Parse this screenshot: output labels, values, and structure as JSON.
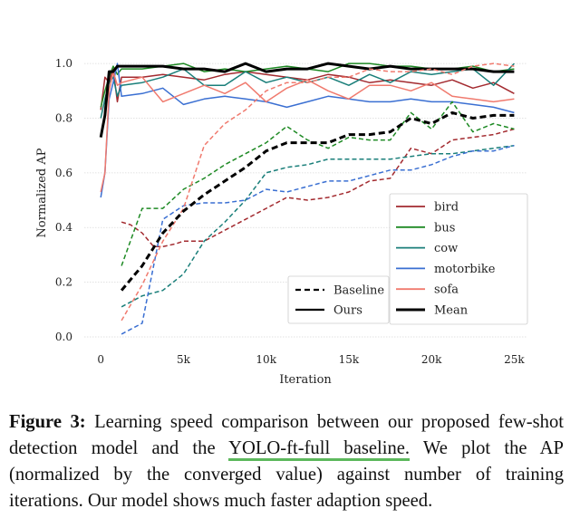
{
  "chart_data": {
    "type": "line",
    "title": "",
    "xlabel": "Iteration",
    "ylabel": "Normalized AP",
    "xlim": [
      -1000,
      25800
    ],
    "ylim": [
      -0.02,
      1.05
    ],
    "x_ticks": [
      0,
      5000,
      10000,
      15000,
      20000,
      25000
    ],
    "x_tick_labels": [
      "0",
      "5k",
      "10k",
      "15k",
      "20k",
      "25k"
    ],
    "y_ticks": [
      0.0,
      0.2,
      0.4,
      0.6,
      0.8,
      1.0
    ],
    "y_tick_labels": [
      "0.0",
      "0.2",
      "0.4",
      "0.6",
      "0.8",
      "1.0"
    ],
    "grid": true,
    "x": [
      0,
      250,
      500,
      750,
      1000,
      1250,
      2500,
      3750,
      5000,
      6250,
      7500,
      8750,
      10000,
      11250,
      12500,
      13750,
      15000,
      16250,
      17500,
      18750,
      20000,
      21250,
      22500,
      23750,
      25000
    ],
    "series": [
      {
        "name": "bird",
        "method": "Ours",
        "color": "#a32a2f",
        "values": [
          0.83,
          0.95,
          0.93,
          0.98,
          0.86,
          0.95,
          0.95,
          0.96,
          0.95,
          0.94,
          0.96,
          0.97,
          0.96,
          0.95,
          0.94,
          0.96,
          0.95,
          0.93,
          0.94,
          0.93,
          0.92,
          0.94,
          0.91,
          0.93,
          0.89
        ]
      },
      {
        "name": "bus",
        "method": "Ours",
        "color": "#1e8a24",
        "values": [
          0.84,
          0.9,
          0.95,
          0.99,
          0.96,
          0.98,
          0.98,
          0.99,
          1.0,
          0.97,
          0.98,
          0.97,
          0.98,
          0.99,
          0.98,
          0.97,
          1.0,
          1.0,
          0.99,
          0.99,
          0.98,
          0.98,
          0.99,
          0.97,
          0.98
        ]
      },
      {
        "name": "cow",
        "method": "Ours",
        "color": "#1a7f7a",
        "values": [
          0.8,
          0.87,
          0.93,
          0.95,
          0.88,
          0.92,
          0.93,
          0.95,
          0.98,
          0.92,
          0.92,
          0.97,
          0.93,
          0.95,
          0.93,
          0.95,
          0.92,
          0.96,
          0.93,
          0.97,
          0.96,
          0.97,
          0.98,
          0.92,
          1.0
        ]
      },
      {
        "name": "motorbike",
        "method": "Ours",
        "color": "#3a6fd2",
        "values": [
          0.51,
          0.6,
          0.87,
          0.93,
          1.0,
          0.88,
          0.89,
          0.91,
          0.85,
          0.87,
          0.88,
          0.87,
          0.86,
          0.84,
          0.86,
          0.88,
          0.87,
          0.86,
          0.86,
          0.87,
          0.86,
          0.86,
          0.85,
          0.84,
          0.82
        ]
      },
      {
        "name": "sofa",
        "method": "Ours",
        "color": "#f07a6e",
        "values": [
          0.53,
          0.6,
          0.9,
          0.97,
          0.92,
          0.93,
          0.95,
          0.86,
          0.89,
          0.92,
          0.89,
          0.93,
          0.86,
          0.91,
          0.94,
          0.9,
          0.87,
          0.92,
          0.92,
          0.9,
          0.93,
          0.88,
          0.87,
          0.86,
          0.87
        ]
      },
      {
        "name": "Mean",
        "method": "Ours",
        "color": "#000000",
        "bold": true,
        "values": [
          0.73,
          0.81,
          0.97,
          0.97,
          0.99,
          0.99,
          0.99,
          0.99,
          0.98,
          0.98,
          0.97,
          1.0,
          0.97,
          0.98,
          0.98,
          1.0,
          0.99,
          0.98,
          0.99,
          0.98,
          0.98,
          0.98,
          0.98,
          0.97,
          0.97
        ]
      },
      {
        "name": "bird",
        "method": "Baseline",
        "color": "#a32a2f",
        "x": [
          1250,
          1800,
          2500,
          3200,
          3750,
          4500,
          5000,
          6250,
          7500,
          8750,
          10000,
          11250,
          12500,
          13750,
          15000,
          16250,
          17500,
          18750,
          20000,
          21250,
          22500,
          23750,
          25000
        ],
        "values": [
          0.42,
          0.41,
          0.38,
          0.33,
          0.33,
          0.34,
          0.35,
          0.35,
          0.39,
          0.43,
          0.47,
          0.51,
          0.5,
          0.51,
          0.53,
          0.57,
          0.58,
          0.69,
          0.67,
          0.72,
          0.73,
          0.74,
          0.76
        ]
      },
      {
        "name": "bus",
        "method": "Baseline",
        "color": "#1e8a24",
        "x": [
          1250,
          2500,
          3750,
          5000,
          6250,
          7500,
          8750,
          10000,
          11250,
          12500,
          13750,
          15000,
          16250,
          17500,
          18750,
          20000,
          21250,
          22500,
          23750,
          25000
        ],
        "values": [
          0.26,
          0.47,
          0.47,
          0.54,
          0.58,
          0.63,
          0.67,
          0.71,
          0.77,
          0.72,
          0.69,
          0.73,
          0.72,
          0.72,
          0.82,
          0.76,
          0.86,
          0.75,
          0.78,
          0.76
        ]
      },
      {
        "name": "cow",
        "method": "Baseline",
        "color": "#1a7f7a",
        "x": [
          1250,
          2500,
          3750,
          5000,
          6250,
          7500,
          8750,
          10000,
          11250,
          12500,
          13750,
          15000,
          16250,
          17500,
          18750,
          20000,
          21250,
          22500,
          23750,
          25000
        ],
        "values": [
          0.11,
          0.15,
          0.17,
          0.23,
          0.35,
          0.42,
          0.5,
          0.6,
          0.62,
          0.63,
          0.65,
          0.65,
          0.65,
          0.65,
          0.66,
          0.67,
          0.67,
          0.68,
          0.69,
          0.7
        ]
      },
      {
        "name": "motorbike",
        "method": "Baseline",
        "color": "#3a6fd2",
        "x": [
          1250,
          2500,
          3750,
          5000,
          6250,
          7500,
          8750,
          10000,
          11250,
          12500,
          13750,
          15000,
          16250,
          17500,
          18750,
          20000,
          21250,
          22500,
          23750,
          25000
        ],
        "values": [
          0.01,
          0.05,
          0.43,
          0.48,
          0.49,
          0.49,
          0.5,
          0.54,
          0.53,
          0.55,
          0.57,
          0.57,
          0.59,
          0.61,
          0.61,
          0.63,
          0.66,
          0.68,
          0.68,
          0.7
        ]
      },
      {
        "name": "sofa",
        "method": "Baseline",
        "color": "#f07a6e",
        "x": [
          1250,
          2500,
          3750,
          5000,
          6250,
          7500,
          8750,
          10000,
          11250,
          12500,
          13750,
          15000,
          16250,
          17500,
          18750,
          20000,
          21250,
          22500,
          23750,
          25000
        ],
        "values": [
          0.06,
          0.19,
          0.35,
          0.47,
          0.7,
          0.78,
          0.83,
          0.9,
          0.93,
          0.93,
          0.95,
          0.95,
          0.98,
          0.97,
          0.97,
          0.98,
          0.96,
          0.99,
          1.0,
          0.99
        ]
      },
      {
        "name": "Mean",
        "method": "Baseline",
        "color": "#000000",
        "bold": true,
        "x": [
          1250,
          2500,
          3750,
          5000,
          6250,
          7500,
          8750,
          10000,
          11250,
          12500,
          13750,
          15000,
          16250,
          17500,
          18750,
          20000,
          21250,
          22500,
          23750,
          25000
        ],
        "values": [
          0.17,
          0.26,
          0.38,
          0.46,
          0.52,
          0.57,
          0.62,
          0.68,
          0.71,
          0.71,
          0.71,
          0.74,
          0.74,
          0.75,
          0.8,
          0.78,
          0.82,
          0.8,
          0.81,
          0.81
        ]
      }
    ],
    "legend_methods": [
      {
        "label": "Baseline",
        "style": "dashed"
      },
      {
        "label": "Ours",
        "style": "solid"
      }
    ],
    "legend_classes": [
      {
        "label": "bird",
        "color": "#a32a2f"
      },
      {
        "label": "bus",
        "color": "#1e8a24"
      },
      {
        "label": "cow",
        "color": "#1a7f7a"
      },
      {
        "label": "motorbike",
        "color": "#3a6fd2"
      },
      {
        "label": "sofa",
        "color": "#f07a6e"
      },
      {
        "label": "Mean",
        "color": "#000000"
      }
    ],
    "legend_placement": "lower-right"
  },
  "caption": {
    "label": "Figure 3:",
    "text_before": " Learning speed comparison between our proposed few-shot detection model and the ",
    "highlight": "YOLO-ft-full baseline.",
    "text_after": " We plot the AP (normalized by the converged value) against number of training iterations. Our model shows much faster adaption speed."
  }
}
